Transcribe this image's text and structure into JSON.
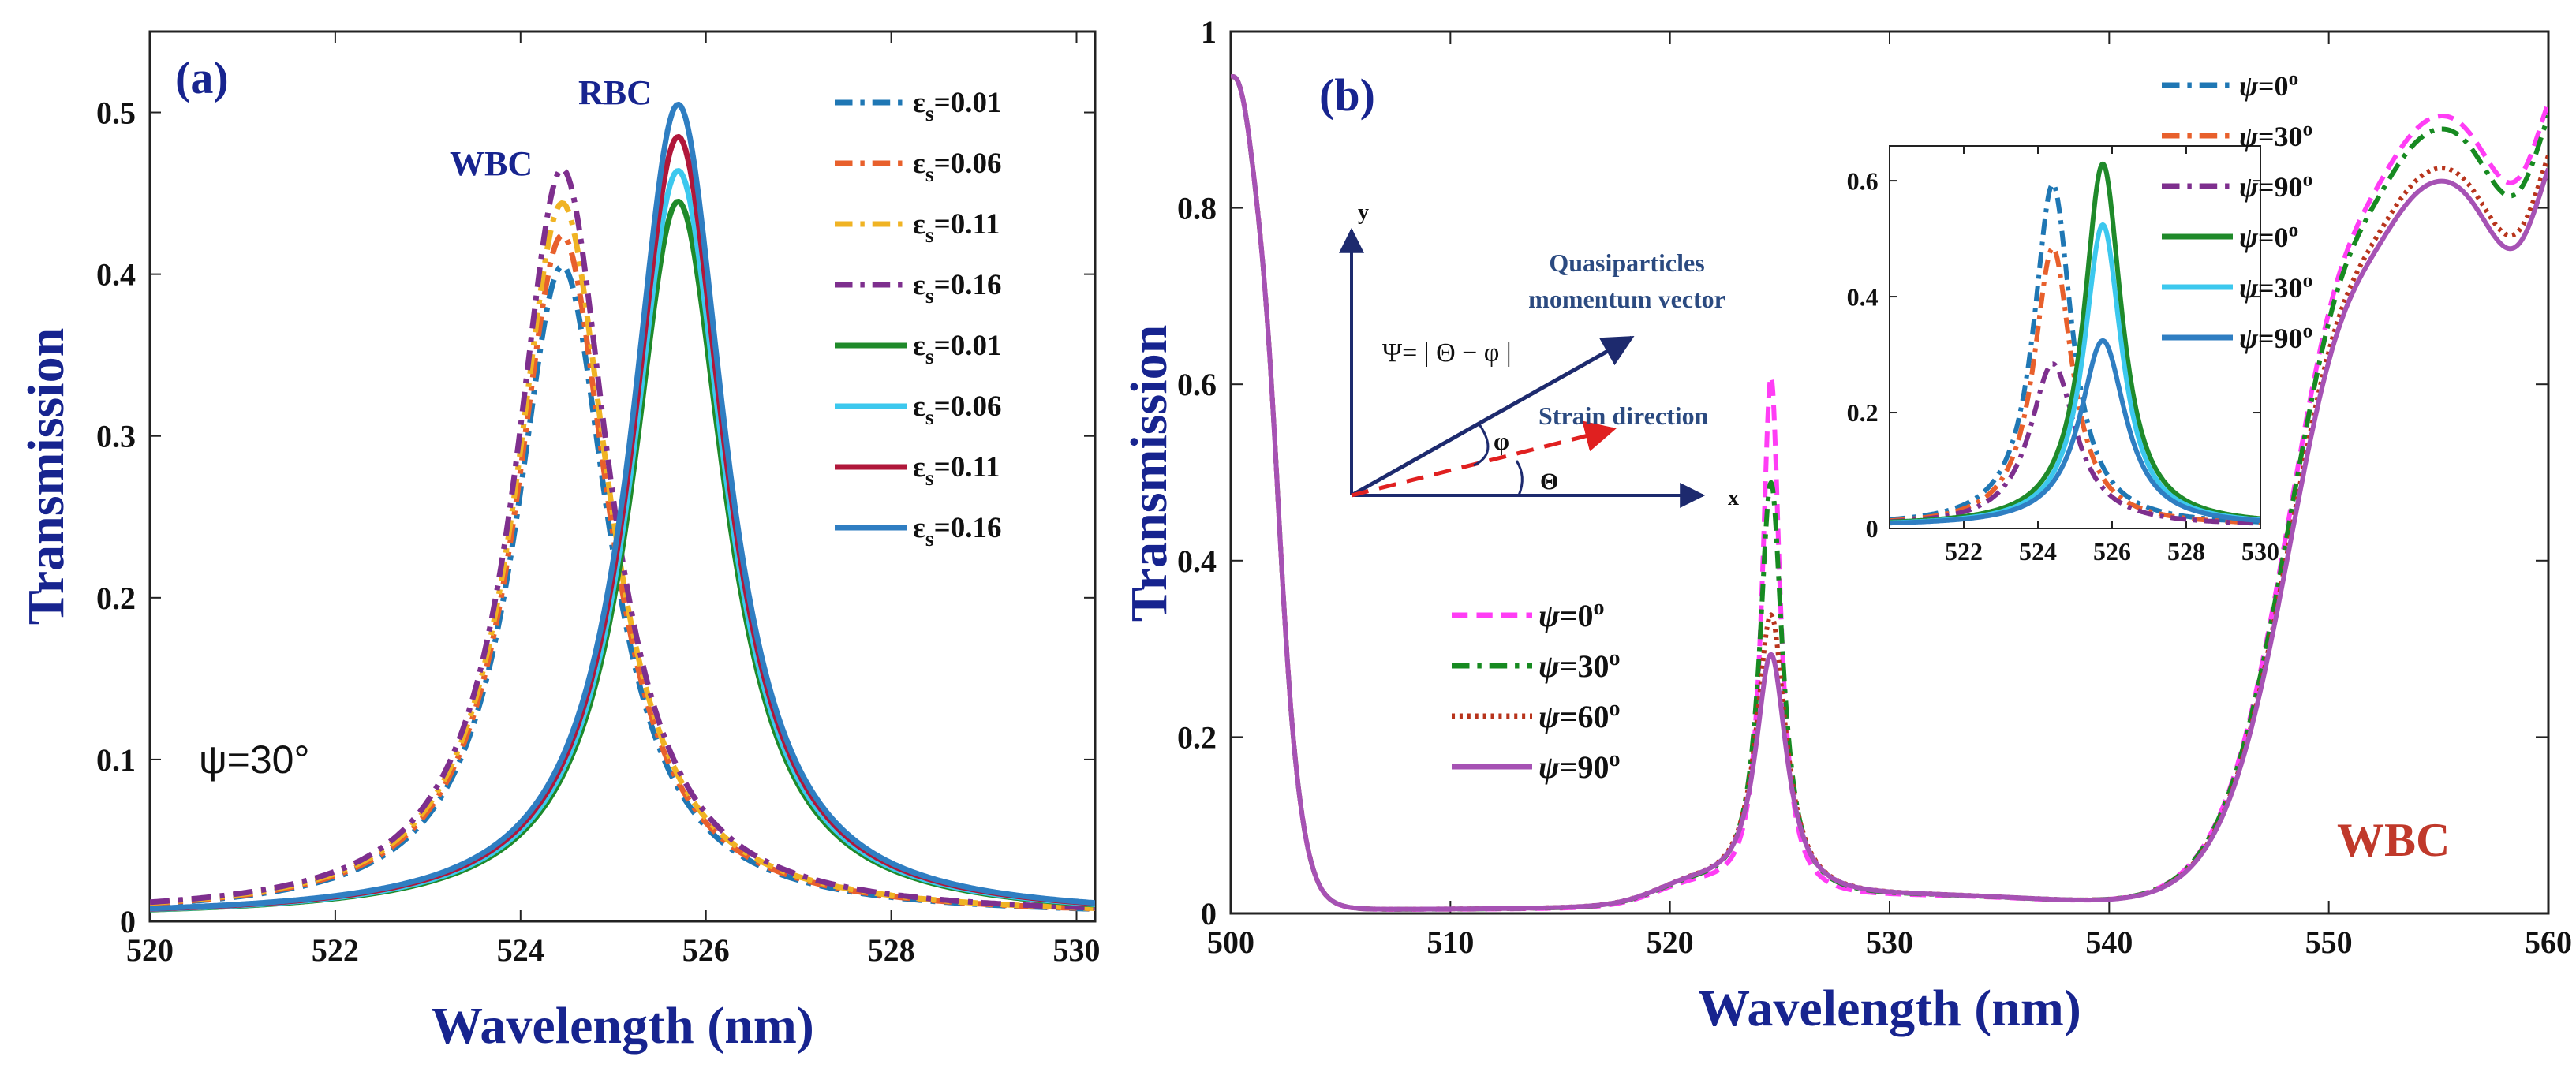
{
  "chart_data": [
    {
      "type": "line",
      "panel_label": "(a)",
      "xlabel": "Wavelength (nm)",
      "ylabel": "Transmission",
      "xlim": [
        520,
        530.2
      ],
      "ylim": [
        0,
        0.55
      ],
      "xticks": [
        520,
        522,
        524,
        526,
        528,
        530
      ],
      "yticks": [
        0,
        0.1,
        0.2,
        0.3,
        0.4,
        0.5
      ],
      "annotations": {
        "wbc": "WBC",
        "rbc": "RBC",
        "psi": "ψ=30°"
      },
      "series": [
        {
          "name": "εs=0.01",
          "group": "WBC",
          "style": "dashdot",
          "color": "#1f77b4",
          "peak_x": 524.45,
          "peak_y": 0.402,
          "hwhm": 0.62,
          "baseline": 0.003
        },
        {
          "name": "εs=0.06",
          "group": "WBC",
          "style": "dashdot",
          "color": "#e8602c",
          "peak_x": 524.45,
          "peak_y": 0.421,
          "hwhm": 0.62,
          "baseline": 0.003
        },
        {
          "name": "εs=0.11",
          "group": "WBC",
          "style": "dashdot",
          "color": "#f0b323",
          "peak_x": 524.45,
          "peak_y": 0.441,
          "hwhm": 0.62,
          "baseline": 0.003
        },
        {
          "name": "εs=0.16",
          "group": "WBC",
          "style": "dashdot",
          "color": "#7e2f8e",
          "peak_x": 524.45,
          "peak_y": 0.462,
          "hwhm": 0.62,
          "baseline": 0.003
        },
        {
          "name": "εs=0.01",
          "group": "RBC",
          "style": "solid",
          "color": "#1f8a2a",
          "peak_x": 525.7,
          "peak_y": 0.443,
          "hwhm": 0.62,
          "baseline": 0.002
        },
        {
          "name": "εs=0.06",
          "group": "RBC",
          "style": "solid",
          "color": "#3cc8ee",
          "peak_x": 525.7,
          "peak_y": 0.462,
          "hwhm": 0.62,
          "baseline": 0.002
        },
        {
          "name": "εs=0.11",
          "group": "RBC",
          "style": "solid",
          "color": "#b0173a",
          "peak_x": 525.7,
          "peak_y": 0.483,
          "hwhm": 0.62,
          "baseline": 0.002
        },
        {
          "name": "εs=0.16",
          "group": "RBC",
          "style": "solid",
          "color": "#2f7ec2",
          "peak_x": 525.7,
          "peak_y": 0.503,
          "hwhm": 0.62,
          "baseline": 0.002
        }
      ]
    },
    {
      "type": "line",
      "panel_label": "(b)",
      "xlabel": "Wavelength (nm)",
      "ylabel": "Transmission",
      "xlim": [
        500,
        560
      ],
      "ylim": [
        0,
        1
      ],
      "xticks": [
        500,
        510,
        520,
        530,
        540,
        550,
        560
      ],
      "yticks": [
        0,
        0.2,
        0.4,
        0.6,
        0.8,
        1
      ],
      "annotation": "WBC",
      "series": [
        {
          "name": "ψ=0°",
          "style": "dashed",
          "color": "#ff3df5",
          "peak_y": 0.6,
          "end_bump": 0.94
        },
        {
          "name": "ψ=30°",
          "style": "dashdot",
          "color": "#178a21",
          "peak_y": 0.48,
          "end_bump": 0.925
        },
        {
          "name": "ψ=60°",
          "style": "dotted",
          "color": "#b8341c",
          "peak_y": 0.33,
          "end_bump": 0.88
        },
        {
          "name": "ψ=90°",
          "style": "solid",
          "color": "#a652b4",
          "peak_y": 0.285,
          "end_bump": 0.865
        }
      ],
      "diagram": {
        "y_label": "y",
        "x_label": "x",
        "momentum_label_1": "Quasiparticles",
        "momentum_label_2": "momentum vector",
        "strain_label": "Strain direction",
        "psi_formula": "Ψ= | Θ − φ |",
        "phi_label": "φ",
        "theta_label": "Θ"
      },
      "inset": {
        "xlim": [
          520,
          530
        ],
        "ylim": [
          0,
          0.66
        ],
        "xticks": [
          522,
          524,
          526,
          528,
          530
        ],
        "yticks": [
          0,
          0.2,
          0.4,
          0.6
        ],
        "series": [
          {
            "name": "ψ=0°",
            "group": "WBC",
            "style": "dashdot",
            "color": "#1f77b4",
            "peak_x": 524.4,
            "peak_y": 0.59,
            "hwhm": 0.62
          },
          {
            "name": "ψ=30°",
            "group": "WBC",
            "style": "dashdot",
            "color": "#e8602c",
            "peak_x": 524.4,
            "peak_y": 0.48,
            "hwhm": 0.62
          },
          {
            "name": "ψ=90°",
            "group": "WBC",
            "style": "dashdot",
            "color": "#7e2f8e",
            "peak_x": 524.4,
            "peak_y": 0.28,
            "hwhm": 0.75
          },
          {
            "name": "ψ=0°",
            "group": "RBC",
            "style": "solid",
            "color": "#1f8a2a",
            "peak_x": 525.75,
            "peak_y": 0.625,
            "hwhm": 0.62
          },
          {
            "name": "ψ=30°",
            "group": "RBC",
            "style": "solid",
            "color": "#3cc8ee",
            "peak_x": 525.75,
            "peak_y": 0.52,
            "hwhm": 0.62
          },
          {
            "name": "ψ=90°",
            "group": "RBC",
            "style": "solid",
            "color": "#2f7ec2",
            "peak_x": 525.75,
            "peak_y": 0.32,
            "hwhm": 0.75
          }
        ]
      }
    }
  ]
}
